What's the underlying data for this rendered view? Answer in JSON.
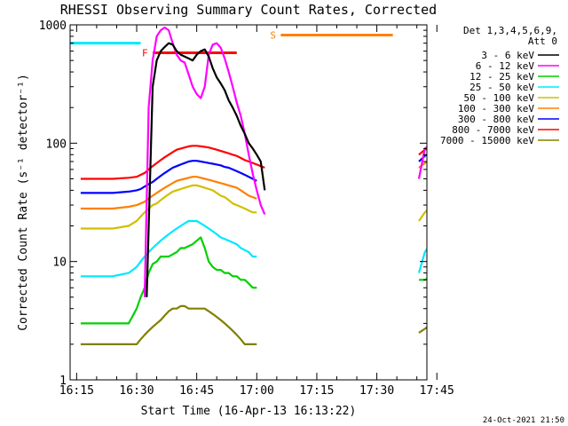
{
  "chart_data": {
    "type": "line",
    "title": "RHESSI Observing Summary Count Rates, Corrected",
    "xlabel": "Start Time (16-Apr-13 16:13:22)",
    "ylabel": "Corrected Count Rate (s⁻¹ detector⁻¹)",
    "x_range_min": [
      13.37,
      215
    ],
    "y_range": [
      1,
      1000
    ],
    "yscale": "log",
    "x_ticks": [
      {
        "v": 15,
        "label": "16:15"
      },
      {
        "v": 30,
        "label": "16:30"
      },
      {
        "v": 45,
        "label": "16:45"
      },
      {
        "v": 60,
        "label": "17:00"
      },
      {
        "v": 75,
        "label": "17:15"
      },
      {
        "v": 90,
        "label": "17:30"
      },
      {
        "v": 105,
        "label": "17:45"
      }
    ],
    "y_ticks": [
      {
        "v": 1,
        "label": "1"
      },
      {
        "v": 10,
        "label": "10"
      },
      {
        "v": 100,
        "label": "100"
      },
      {
        "v": 1000,
        "label": "1000"
      }
    ],
    "legend_header": [
      "Det 1,3,4,5,6,9,",
      "Att 0"
    ],
    "legend_position": "right",
    "timestamp": "24-Oct-2021 21:50",
    "series": [
      {
        "name": "3 - 6 keV",
        "color": "#000000",
        "segments": [
          {
            "x": [
              32.5,
              34,
              35,
              36,
              37,
              38,
              39,
              40,
              41,
              42,
              43,
              44,
              45,
              46,
              47,
              48,
              49,
              50,
              51,
              52,
              53,
              54,
              55,
              56,
              57,
              58,
              59,
              60,
              61,
              62
            ],
            "y": [
              5,
              300,
              500,
              600,
              650,
              700,
              680,
              600,
              560,
              540,
              520,
              500,
              560,
              600,
              620,
              540,
              430,
              360,
              320,
              280,
              230,
              200,
              170,
              140,
              120,
              100,
              90,
              80,
              70,
              40
            ]
          }
        ]
      },
      {
        "name": "6 - 12 keV",
        "color": "#ff00ff",
        "segments": [
          {
            "x": [
              32,
              33,
              34,
              35,
              36,
              37,
              38,
              39,
              40,
              41,
              42,
              43,
              44,
              45,
              46,
              47,
              48,
              49,
              50,
              51,
              52,
              53,
              54,
              55,
              56,
              57,
              58,
              59,
              60,
              61,
              62
            ],
            "y": [
              5,
              200,
              500,
              800,
              900,
              950,
              900,
              700,
              560,
              500,
              480,
              380,
              300,
              260,
              240,
              300,
              560,
              680,
              700,
              640,
              520,
              400,
              300,
              220,
              170,
              120,
              80,
              55,
              40,
              30,
              25
            ]
          },
          {
            "x": [
              100.5,
              102,
              104,
              106,
              108,
              110,
              112,
              114,
              116
            ],
            "y": [
              50,
              90,
              100,
              95,
              92,
              88,
              85,
              80,
              78
            ]
          }
        ]
      },
      {
        "name": "12 - 25 keV",
        "color": "#00d000",
        "segments": [
          {
            "x": [
              16,
              20,
              24,
              28,
              30,
              31,
              32,
              33,
              34,
              35,
              36,
              37,
              38,
              39,
              40,
              41,
              42,
              43,
              44,
              45,
              46,
              47,
              48,
              49,
              50,
              51,
              52,
              53,
              54,
              55,
              56,
              57,
              58,
              59,
              60
            ],
            "y": [
              3,
              3,
              3,
              3,
              4,
              5,
              6,
              8,
              9.5,
              10,
              11,
              11,
              11,
              11.5,
              12,
              13,
              13,
              13.5,
              14,
              15,
              16,
              13,
              10,
              9,
              8.5,
              8.5,
              8,
              8,
              7.5,
              7.5,
              7,
              7,
              6.5,
              6,
              6
            ]
          },
          {
            "x": [
              100.5,
              102,
              104,
              106,
              108,
              110,
              112,
              114,
              116
            ],
            "y": [
              7,
              7,
              7.5,
              8,
              8.5,
              8,
              7.5,
              7,
              6
            ]
          }
        ]
      },
      {
        "name": "25 - 50 keV",
        "color": "#00e8ff",
        "segments": [
          {
            "x": [
              16,
              20,
              24,
              28,
              30,
              31,
              32,
              33,
              34,
              35,
              36,
              37,
              38,
              39,
              40,
              41,
              42,
              43,
              44,
              45,
              46,
              47,
              48,
              49,
              50,
              51,
              52,
              53,
              54,
              55,
              56,
              57,
              58,
              59,
              60
            ],
            "y": [
              7.5,
              7.5,
              7.5,
              8,
              9,
              10,
              11,
              12,
              13,
              14,
              15,
              16,
              17,
              18,
              19,
              20,
              21,
              22,
              22,
              22,
              21,
              20,
              19,
              18,
              17,
              16,
              15.5,
              15,
              14.5,
              14,
              13,
              12.5,
              12,
              11,
              11
            ]
          },
          {
            "x": [
              100.5,
              102,
              104,
              106,
              108,
              110,
              112,
              114,
              116
            ],
            "y": [
              8,
              12,
              15,
              16,
              15,
              14,
              13,
              12,
              11
            ]
          }
        ]
      },
      {
        "name": "50 - 100 keV",
        "color": "#d0c000",
        "segments": [
          {
            "x": [
              16,
              20,
              24,
              28,
              30,
              31,
              32,
              33,
              34,
              35,
              36,
              37,
              38,
              39,
              40,
              41,
              42,
              43,
              44,
              45,
              46,
              47,
              48,
              49,
              50,
              51,
              52,
              53,
              54,
              55,
              56,
              57,
              58,
              59,
              60
            ],
            "y": [
              19,
              19,
              19,
              20,
              22,
              24,
              26,
              28,
              30,
              31,
              33,
              35,
              37,
              39,
              40,
              41,
              42,
              43,
              44,
              44,
              43,
              42,
              41,
              40,
              38,
              36,
              35,
              33,
              31,
              30,
              29,
              28,
              27,
              26,
              26
            ]
          },
          {
            "x": [
              100.5,
              102,
              104,
              106,
              108,
              110,
              112,
              114,
              116
            ],
            "y": [
              22,
              26,
              30,
              32,
              30,
              29,
              28,
              27,
              26
            ]
          }
        ]
      },
      {
        "name": "100 - 300 keV",
        "color": "#ff8000",
        "segments": [
          {
            "x": [
              16,
              20,
              24,
              28,
              30,
              31,
              32,
              33,
              34,
              35,
              36,
              37,
              38,
              39,
              40,
              41,
              42,
              43,
              44,
              45,
              46,
              47,
              48,
              49,
              50,
              51,
              52,
              53,
              54,
              55,
              56,
              57,
              58,
              59,
              60
            ],
            "y": [
              28,
              28,
              28,
              29,
              30,
              31,
              32,
              34,
              36,
              38,
              40,
              42,
              44,
              46,
              48,
              49,
              50,
              51,
              52,
              52,
              51,
              50,
              49,
              48,
              47,
              46,
              45,
              44,
              43,
              42,
              40,
              38,
              36,
              35,
              34
            ]
          },
          {
            "x": [
              100.5,
              102,
              104,
              106,
              108,
              110,
              112,
              114,
              116
            ],
            "y": [
              62,
              68,
              72,
              70,
              68,
              65,
              62,
              58,
              55
            ]
          }
        ]
      },
      {
        "name": "300 - 800 keV",
        "color": "#0000ff",
        "segments": [
          {
            "x": [
              16,
              20,
              24,
              28,
              30,
              31,
              32,
              33,
              34,
              35,
              36,
              37,
              38,
              39,
              40,
              41,
              42,
              43,
              44,
              45,
              46,
              47,
              48,
              49,
              50,
              51,
              52,
              53,
              54,
              55,
              56,
              57,
              58,
              59,
              60
            ],
            "y": [
              38,
              38,
              38,
              39,
              40,
              41,
              43,
              45,
              47,
              50,
              53,
              56,
              59,
              62,
              64,
              66,
              68,
              70,
              71,
              71,
              70,
              69,
              68,
              67,
              66,
              65,
              63,
              62,
              60,
              58,
              56,
              54,
              52,
              50,
              48
            ]
          },
          {
            "x": [
              100.5,
              102,
              104,
              106,
              108,
              110,
              112,
              114,
              116
            ],
            "y": [
              70,
              78,
              85,
              88,
              82,
              78,
              72,
              68,
              65
            ]
          }
        ]
      },
      {
        "name": "800 - 7000 keV",
        "color": "#ff0000",
        "segments": [
          {
            "x": [
              16,
              20,
              24,
              28,
              30,
              31,
              32,
              33,
              34,
              35,
              36,
              37,
              38,
              39,
              40,
              41,
              42,
              43,
              44,
              45,
              46,
              47,
              48,
              49,
              50,
              51,
              52,
              53,
              54,
              55,
              56,
              57,
              58,
              59,
              60,
              61,
              62
            ],
            "y": [
              50,
              50,
              50,
              51,
              52,
              54,
              56,
              60,
              64,
              68,
              72,
              76,
              80,
              84,
              88,
              90,
              92,
              94,
              95,
              95,
              94,
              93,
              92,
              90,
              88,
              86,
              84,
              82,
              80,
              78,
              75,
              72,
              70,
              68,
              66,
              64,
              62
            ]
          },
          {
            "x": [
              100.5,
              102,
              104,
              106,
              108,
              110,
              112,
              114,
              116
            ],
            "y": [
              80,
              88,
              95,
              100,
              96,
              92,
              88,
              82,
              78
            ]
          }
        ]
      },
      {
        "name": "7000 - 15000 keV",
        "color": "#808000",
        "segments": [
          {
            "x": [
              16,
              20,
              24,
              28,
              30,
              31,
              32,
              33,
              34,
              35,
              36,
              37,
              38,
              39,
              40,
              41,
              42,
              43,
              44,
              45,
              46,
              47,
              48,
              49,
              50,
              51,
              52,
              53,
              54,
              55,
              56,
              57,
              58,
              59,
              60
            ],
            "y": [
              2,
              2,
              2,
              2,
              2,
              2.2,
              2.4,
              2.6,
              2.8,
              3,
              3.2,
              3.5,
              3.8,
              4,
              4,
              4.2,
              4.2,
              4,
              4,
              4,
              4,
              4,
              3.8,
              3.6,
              3.4,
              3.2,
              3,
              2.8,
              2.6,
              2.4,
              2.2,
              2,
              2,
              2,
              2
            ]
          },
          {
            "x": [
              100.5,
              102,
              104,
              106,
              108,
              110,
              112,
              114,
              116
            ],
            "y": [
              2.5,
              2.7,
              3,
              3,
              2.8,
              2.6,
              2.4,
              2.2,
              2
            ]
          }
        ]
      }
    ],
    "flags": [
      {
        "label": "F",
        "color": "#ff0000",
        "x_start": 34,
        "x_end": 55,
        "y": 580
      },
      {
        "label": "S",
        "color": "#ff8000",
        "x_start": 66,
        "x_end": 94,
        "y": 820
      }
    ],
    "night_intervals": [
      {
        "x_start": 13.37,
        "x_end": 31,
        "y": 700
      },
      {
        "x_start": 104,
        "x_end": 117,
        "y": 700
      }
    ],
    "grid": false
  }
}
